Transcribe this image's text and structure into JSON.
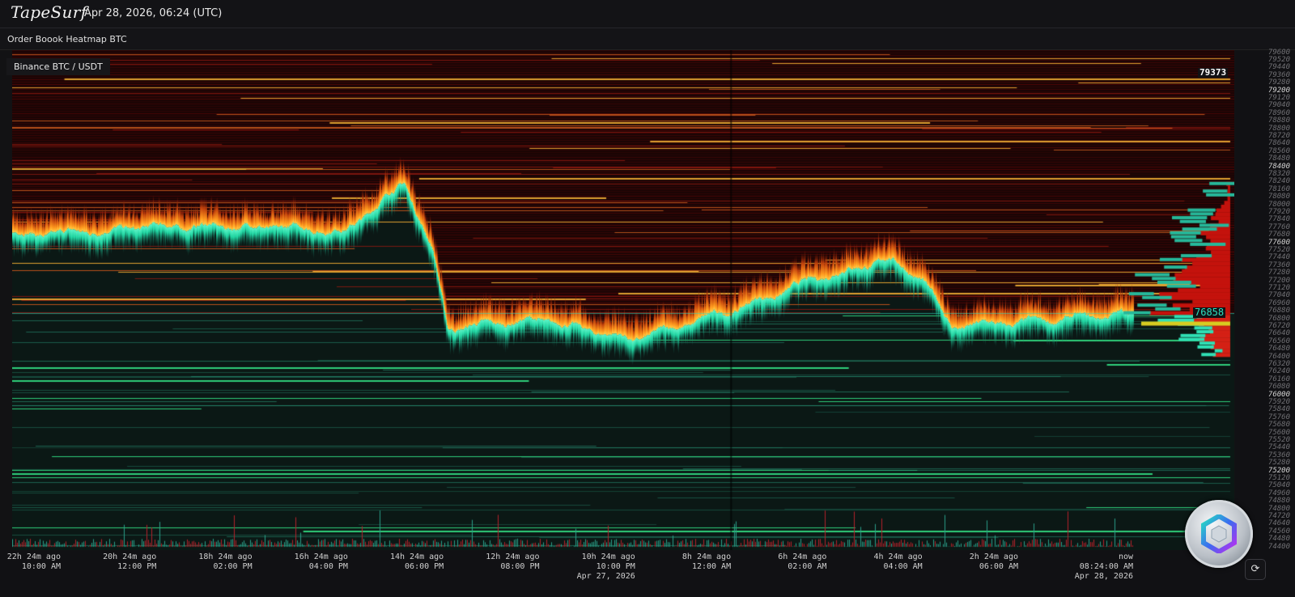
{
  "header": {
    "logo": "TapeSurf",
    "datetime": "Apr 28, 2026, 06:24 (UTC)"
  },
  "subtitle": "Order Boook Heatmap BTC",
  "chart": {
    "pair_label": "Binance BTC / USDT",
    "high_price_marker": "79373",
    "current_price_marker": "76858",
    "y_ticks": [
      "79600",
      "79520",
      "79440",
      "79360",
      "79280",
      "79200",
      "79120",
      "79040",
      "78960",
      "78880",
      "78800",
      "78720",
      "78640",
      "78560",
      "78480",
      "78400",
      "78320",
      "78240",
      "78160",
      "78080",
      "78000",
      "77920",
      "77840",
      "77760",
      "77680",
      "77600",
      "77520",
      "77440",
      "77360",
      "77280",
      "77200",
      "77120",
      "77040",
      "76960",
      "76880",
      "76800",
      "76720",
      "76640",
      "76560",
      "76480",
      "76400",
      "76320",
      "76240",
      "76160",
      "76080",
      "76000",
      "75920",
      "75840",
      "75760",
      "75680",
      "75600",
      "75520",
      "75440",
      "75360",
      "75280",
      "75200",
      "75120",
      "75040",
      "74960",
      "74880",
      "74800",
      "74720",
      "74640",
      "74560",
      "74480",
      "74400"
    ],
    "y_major": [
      "79200",
      "78400",
      "77600",
      "76000",
      "75200"
    ],
    "x_ticks": [
      {
        "rel": "22h 24m ago",
        "time": "10:00 AM",
        "date": ""
      },
      {
        "rel": "20h 24m ago",
        "time": "12:00 PM",
        "date": ""
      },
      {
        "rel": "18h 24m ago",
        "time": "02:00 PM",
        "date": ""
      },
      {
        "rel": "16h 24m ago",
        "time": "04:00 PM",
        "date": ""
      },
      {
        "rel": "14h 24m ago",
        "time": "06:00 PM",
        "date": ""
      },
      {
        "rel": "12h 24m ago",
        "time": "08:00 PM",
        "date": ""
      },
      {
        "rel": "10h 24m ago",
        "time": "10:00 PM",
        "date": "Apr 27, 2026"
      },
      {
        "rel": "8h 24m ago",
        "time": "12:00 AM",
        "date": ""
      },
      {
        "rel": "6h 24m ago",
        "time": "02:00 AM",
        "date": ""
      },
      {
        "rel": "4h 24m ago",
        "time": "04:00 AM",
        "date": ""
      },
      {
        "rel": "2h 24m ago",
        "time": "06:00 AM",
        "date": ""
      },
      {
        "rel": "now",
        "time": "08:24:00 AM",
        "date": "Apr 28, 2026"
      }
    ]
  },
  "chart_data": {
    "type": "heatmap",
    "ylim": [
      74320,
      79640
    ],
    "x_unit": "hours ago",
    "mid_price": [
      {
        "hours_ago": 23.4,
        "price": 77700
      },
      {
        "hours_ago": 22.4,
        "price": 77690
      },
      {
        "hours_ago": 20.4,
        "price": 77770
      },
      {
        "hours_ago": 18.4,
        "price": 77770
      },
      {
        "hours_ago": 16.4,
        "price": 77730
      },
      {
        "hours_ago": 15.2,
        "price": 78240
      },
      {
        "hours_ago": 14.6,
        "price": 77500
      },
      {
        "hours_ago": 14.3,
        "price": 76700
      },
      {
        "hours_ago": 12.4,
        "price": 76790
      },
      {
        "hours_ago": 10.4,
        "price": 76580
      },
      {
        "hours_ago": 8.4,
        "price": 76880
      },
      {
        "hours_ago": 6.4,
        "price": 77260
      },
      {
        "hours_ago": 5.1,
        "price": 77430
      },
      {
        "hours_ago": 4.4,
        "price": 77220
      },
      {
        "hours_ago": 3.8,
        "price": 76720
      },
      {
        "hours_ago": 2.4,
        "price": 76750
      },
      {
        "hours_ago": 0.0,
        "price": 76858
      }
    ],
    "colors": {
      "asks": "#ff8c1a",
      "bids": "#1fd3a0",
      "ask_bg": "#2a0707",
      "bid_bg": "#0c1c19",
      "level_ask": "#e0a030",
      "level_bid": "#2ecf7a"
    }
  },
  "icons": {
    "refresh": "refresh-icon",
    "logo_coin": "coin-logo"
  }
}
